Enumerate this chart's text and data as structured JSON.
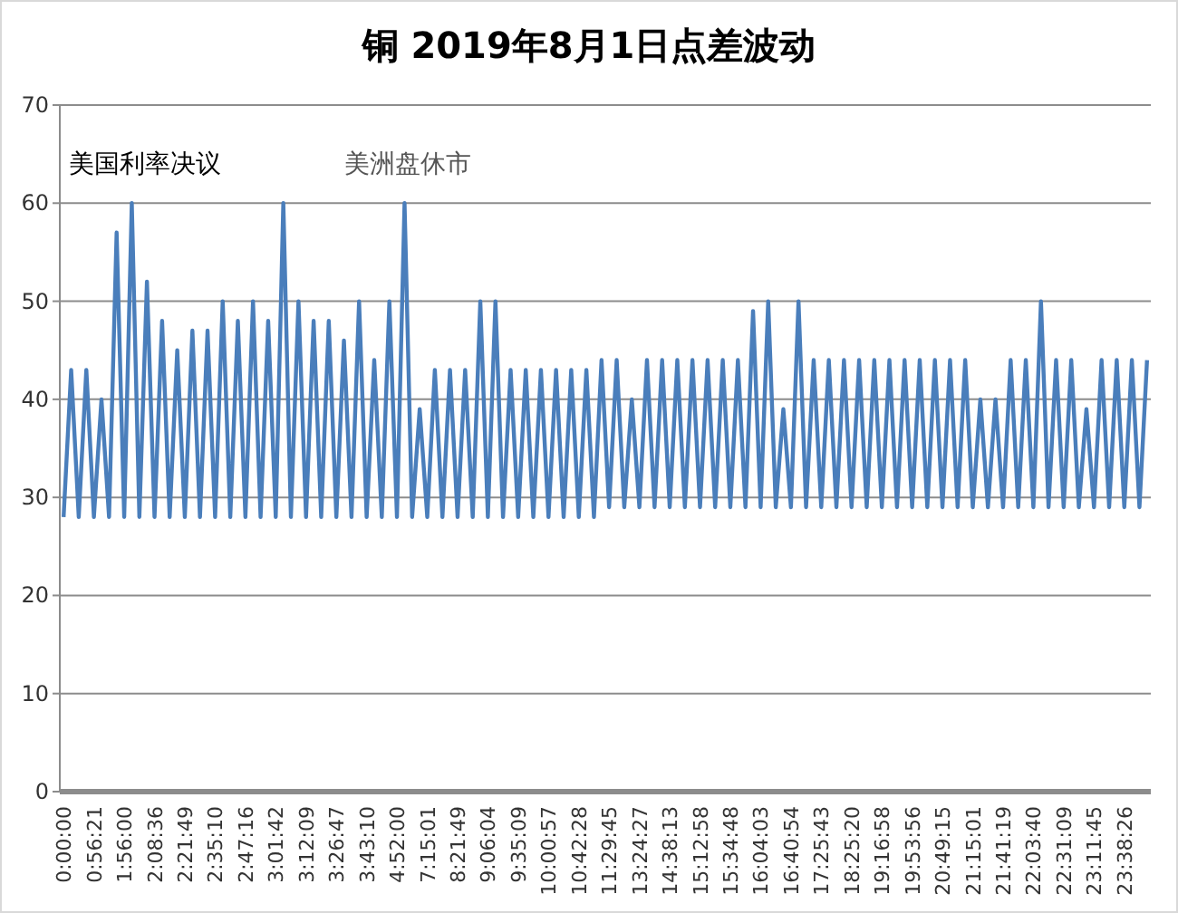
{
  "chart_data": {
    "type": "line",
    "title": "铜 2019年8月1日点差波动",
    "categories": [
      "0:00:00",
      null,
      null,
      null,
      "0:56:21",
      null,
      null,
      null,
      "1:56:00",
      null,
      null,
      null,
      "2:08:36",
      null,
      null,
      null,
      "2:21:49",
      null,
      null,
      null,
      "2:35:10",
      null,
      null,
      null,
      "2:47:16",
      null,
      null,
      null,
      "3:01:42",
      null,
      null,
      null,
      "3:12:09",
      null,
      null,
      null,
      "3:26:47",
      null,
      null,
      null,
      "3:43:10",
      null,
      null,
      null,
      "4:52:00",
      null,
      null,
      null,
      "7:15:01",
      null,
      null,
      null,
      "8:21:49",
      null,
      null,
      null,
      "9:06:04",
      null,
      null,
      null,
      "9:35:09",
      null,
      null,
      null,
      "10:00:57",
      null,
      null,
      null,
      "10:42:28",
      null,
      null,
      null,
      "11:29:45",
      null,
      null,
      null,
      "13:24:27",
      null,
      null,
      null,
      "14:38:13",
      null,
      null,
      null,
      "15:12:58",
      null,
      null,
      null,
      "15:34:48",
      null,
      null,
      null,
      "16:04:03",
      null,
      null,
      null,
      "16:40:54",
      null,
      null,
      null,
      "17:25:43",
      null,
      null,
      null,
      "18:25:20",
      null,
      null,
      null,
      "19:16:58",
      null,
      null,
      null,
      "19:53:56",
      null,
      null,
      null,
      "20:49:15",
      null,
      null,
      null,
      "21:15:01",
      null,
      null,
      null,
      "21:41:19",
      null,
      null,
      null,
      "22:03:40",
      null,
      null,
      null,
      "22:31:09",
      null,
      null,
      null,
      "23:11:45",
      null,
      null,
      null,
      "23:38:26",
      null,
      null,
      null
    ],
    "values": [
      28,
      43,
      28,
      43,
      28,
      40,
      28,
      57,
      28,
      60,
      28,
      52,
      28,
      48,
      28,
      45,
      28,
      47,
      28,
      47,
      28,
      50,
      28,
      48,
      28,
      50,
      28,
      48,
      28,
      60,
      28,
      50,
      28,
      48,
      28,
      48,
      28,
      46,
      28,
      50,
      28,
      44,
      28,
      50,
      28,
      60,
      28,
      39,
      28,
      43,
      28,
      43,
      28,
      43,
      28,
      50,
      28,
      50,
      28,
      43,
      28,
      43,
      28,
      43,
      28,
      43,
      28,
      43,
      28,
      43,
      28,
      44,
      29,
      44,
      29,
      40,
      29,
      44,
      29,
      44,
      29,
      44,
      29,
      44,
      29,
      44,
      29,
      44,
      29,
      44,
      29,
      49,
      29,
      50,
      29,
      39,
      29,
      50,
      29,
      44,
      29,
      44,
      29,
      44,
      29,
      44,
      29,
      44,
      29,
      44,
      29,
      44,
      29,
      44,
      29,
      44,
      29,
      44,
      29,
      44,
      29,
      40,
      29,
      40,
      29,
      44,
      29,
      44,
      29,
      50,
      29,
      44,
      29,
      44,
      29,
      39,
      29,
      44,
      29,
      44,
      29,
      44,
      29,
      44
    ],
    "color": "#4a7ebb",
    "ylim": [
      0,
      70
    ],
    "yticks": [
      0,
      10,
      20,
      30,
      40,
      50,
      60,
      70
    ],
    "grid": "y",
    "annotations": [
      "美国利率决议",
      "美洲盘休市"
    ]
  }
}
